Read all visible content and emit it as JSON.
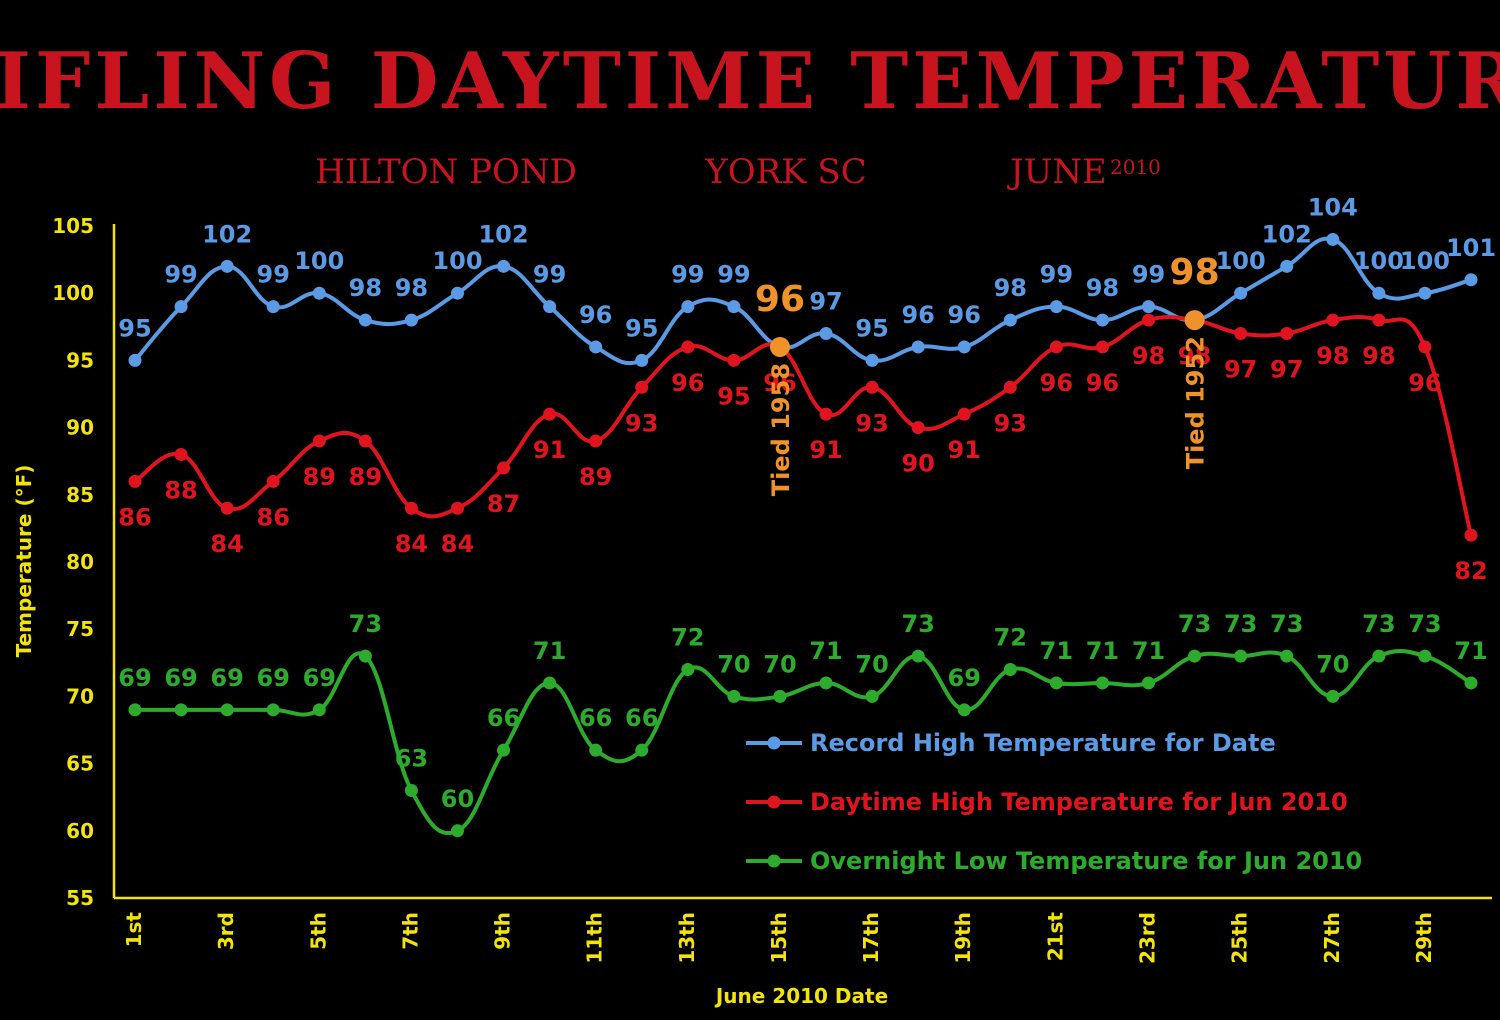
{
  "chart_data": {
    "type": "line",
    "title": "STIFLING DAYTIME TEMPERATURES",
    "subtitle": {
      "place": "HILTON POND",
      "location": "YORK SC",
      "month": "JUNE",
      "year": "2010"
    },
    "xlabel": "June 2010 Date",
    "ylabel": "Temperature (°F)",
    "ylim": [
      55,
      105
    ],
    "yticks": [
      55,
      60,
      65,
      70,
      75,
      80,
      85,
      90,
      95,
      100,
      105
    ],
    "x": [
      1,
      2,
      3,
      4,
      5,
      6,
      7,
      8,
      9,
      10,
      11,
      12,
      13,
      14,
      15,
      16,
      17,
      18,
      19,
      20,
      21,
      22,
      23,
      24,
      25,
      26,
      27,
      28,
      29,
      30
    ],
    "xtick_labels": [
      {
        "x": 1,
        "label": "1st"
      },
      {
        "x": 3,
        "label": "3rd"
      },
      {
        "x": 5,
        "label": "5th"
      },
      {
        "x": 7,
        "label": "7th"
      },
      {
        "x": 9,
        "label": "9th"
      },
      {
        "x": 11,
        "label": "11th"
      },
      {
        "x": 13,
        "label": "13th"
      },
      {
        "x": 15,
        "label": "15th"
      },
      {
        "x": 17,
        "label": "17th"
      },
      {
        "x": 19,
        "label": "19th"
      },
      {
        "x": 21,
        "label": "21st"
      },
      {
        "x": 23,
        "label": "23rd"
      },
      {
        "x": 25,
        "label": "25th"
      },
      {
        "x": 27,
        "label": "27th"
      },
      {
        "x": 29,
        "label": "29th"
      }
    ],
    "grid": false,
    "legend_position": "bottom-right",
    "series": [
      {
        "name": "Record High Temperature for Date",
        "color": "#5b9be6",
        "label_side": "above",
        "values": [
          95,
          99,
          102,
          99,
          100,
          98,
          98,
          100,
          102,
          99,
          96,
          95,
          99,
          99,
          96,
          97,
          95,
          96,
          96,
          98,
          99,
          98,
          99,
          98,
          100,
          102,
          104,
          100,
          100,
          101
        ]
      },
      {
        "name": "Daytime High Temperature for Jun 2010",
        "color": "#e0141e",
        "label_side": "below",
        "values": [
          86,
          88,
          84,
          86,
          89,
          89,
          84,
          84,
          87,
          91,
          89,
          93,
          96,
          95,
          96,
          91,
          93,
          90,
          91,
          93,
          96,
          96,
          98,
          98,
          97,
          97,
          98,
          98,
          96,
          82
        ]
      },
      {
        "name": "Overnight Low Temperature for Jun 2010",
        "color": "#2dab2d",
        "label_side": "above",
        "values": [
          69,
          69,
          69,
          69,
          69,
          73,
          63,
          60,
          66,
          71,
          66,
          66,
          72,
          70,
          70,
          71,
          70,
          73,
          69,
          72,
          71,
          71,
          71,
          73,
          73,
          73,
          70,
          73,
          73,
          71
        ]
      }
    ],
    "annotations": [
      {
        "x": 15,
        "value": "96",
        "text": "Tied 1958",
        "color": "#f0922b"
      },
      {
        "x": 24,
        "value": "98",
        "text": "Tied 1952",
        "color": "#f0922b"
      }
    ]
  }
}
